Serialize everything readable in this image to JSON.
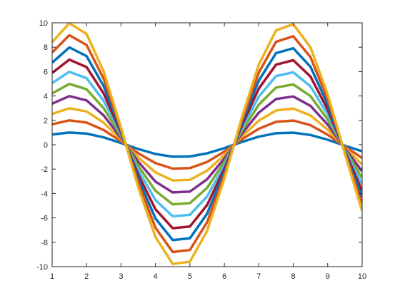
{
  "chart_data": {
    "type": "line",
    "title": "",
    "xlabel": "",
    "ylabel": "",
    "xlim": [
      1,
      10
    ],
    "ylim": [
      -10,
      10
    ],
    "grid": false,
    "x_ticks": [
      1,
      2,
      3,
      4,
      5,
      6,
      7,
      8,
      9,
      10
    ],
    "x_tick_labels": [
      "1",
      "2",
      "3",
      "4",
      "5",
      "6",
      "7",
      "8",
      "9",
      "10"
    ],
    "y_ticks": [
      -10,
      -8,
      -6,
      -4,
      -2,
      0,
      2,
      4,
      6,
      8,
      10
    ],
    "y_tick_labels": [
      "-10",
      "-8",
      "-6",
      "-4",
      "-2",
      "0",
      "2",
      "4",
      "6",
      "8",
      "10"
    ],
    "x": [
      1,
      1.5,
      2,
      2.5,
      3,
      3.5,
      4,
      4.5,
      5,
      5.5,
      6,
      6.5,
      7,
      7.5,
      8,
      8.5,
      9,
      9.5,
      10
    ],
    "series": [
      {
        "color": "#0072BD",
        "values": [
          0.84,
          1.0,
          0.91,
          0.6,
          0.14,
          -0.35,
          -0.76,
          -0.98,
          -0.96,
          -0.71,
          -0.28,
          0.22,
          0.66,
          0.94,
          0.99,
          0.8,
          0.41,
          -0.08,
          -0.54
        ]
      },
      {
        "color": "#D95319",
        "values": [
          1.68,
          2.0,
          1.82,
          1.2,
          0.28,
          -0.7,
          -1.51,
          -1.96,
          -1.92,
          -1.41,
          -0.56,
          0.43,
          1.31,
          1.88,
          1.98,
          1.6,
          0.82,
          -0.15,
          -1.09
        ]
      },
      {
        "color": "#EDB120",
        "values": [
          2.52,
          2.99,
          2.73,
          1.8,
          0.42,
          -1.05,
          -2.27,
          -2.93,
          -2.88,
          -2.12,
          -0.84,
          0.65,
          1.97,
          2.81,
          2.97,
          2.4,
          1.24,
          -0.23,
          -1.63
        ]
      },
      {
        "color": "#7E2F8E",
        "values": [
          3.37,
          3.99,
          3.64,
          2.39,
          0.56,
          -1.4,
          -3.03,
          -3.91,
          -3.84,
          -2.83,
          -1.12,
          0.86,
          2.63,
          3.75,
          3.96,
          3.19,
          1.65,
          -0.3,
          -2.18
        ]
      },
      {
        "color": "#77AC30",
        "values": [
          4.21,
          4.99,
          4.55,
          2.99,
          0.71,
          -1.75,
          -3.78,
          -4.89,
          -4.79,
          -3.53,
          -1.4,
          1.08,
          3.28,
          4.69,
          4.95,
          3.99,
          2.06,
          -0.38,
          -2.72
        ]
      },
      {
        "color": "#4DBEEE",
        "values": [
          5.05,
          5.98,
          5.46,
          3.59,
          0.85,
          -2.1,
          -4.54,
          -5.87,
          -5.75,
          -4.24,
          -1.68,
          1.29,
          3.94,
          5.63,
          5.94,
          4.79,
          2.47,
          -0.45,
          -3.26
        ]
      },
      {
        "color": "#A2142F",
        "values": [
          5.89,
          6.98,
          6.37,
          4.19,
          0.99,
          -2.46,
          -5.3,
          -6.85,
          -6.71,
          -4.94,
          -1.96,
          1.51,
          4.6,
          6.57,
          6.93,
          5.59,
          2.88,
          -0.53,
          -3.81
        ]
      },
      {
        "color": "#0072BD",
        "values": [
          6.73,
          7.98,
          7.27,
          4.79,
          1.13,
          -2.81,
          -6.05,
          -7.82,
          -7.67,
          -5.65,
          -2.24,
          1.72,
          5.26,
          7.51,
          7.91,
          6.39,
          3.3,
          -0.6,
          -4.35
        ]
      },
      {
        "color": "#D95319",
        "values": [
          7.57,
          8.98,
          8.18,
          5.39,
          1.27,
          -3.16,
          -6.81,
          -8.8,
          -8.63,
          -6.35,
          -2.51,
          1.94,
          5.91,
          8.44,
          8.9,
          7.19,
          3.71,
          -0.68,
          -4.9
        ]
      },
      {
        "color": "#EDB120",
        "values": [
          8.41,
          9.97,
          9.09,
          5.98,
          1.41,
          -3.51,
          -7.57,
          -9.78,
          -9.59,
          -7.06,
          -2.79,
          2.15,
          6.57,
          9.38,
          9.89,
          7.98,
          4.12,
          -0.75,
          -5.44
        ]
      }
    ]
  }
}
